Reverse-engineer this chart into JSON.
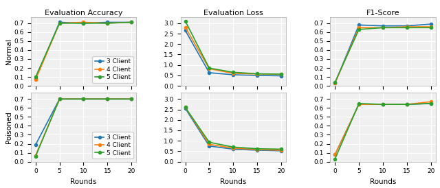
{
  "rounds": [
    0,
    5,
    10,
    15,
    20
  ],
  "normal": {
    "accuracy": {
      "3client": [
        0.08,
        0.71,
        0.7,
        0.71,
        0.71
      ],
      "4client": [
        0.07,
        0.7,
        0.71,
        0.7,
        0.71
      ],
      "5client": [
        0.1,
        0.7,
        0.7,
        0.7,
        0.71
      ]
    },
    "loss": {
      "3client": [
        2.65,
        0.63,
        0.53,
        0.5,
        0.48
      ],
      "4client": [
        2.8,
        0.82,
        0.6,
        0.57,
        0.55
      ],
      "5client": [
        3.1,
        0.85,
        0.65,
        0.58,
        0.56
      ]
    },
    "f1": {
      "3client": [
        0.03,
        0.68,
        0.67,
        0.67,
        0.69
      ],
      "4client": [
        0.03,
        0.65,
        0.65,
        0.66,
        0.66
      ],
      "5client": [
        0.04,
        0.63,
        0.65,
        0.65,
        0.65
      ]
    }
  },
  "poisoned": {
    "accuracy": {
      "3client": [
        0.19,
        0.7,
        0.7,
        0.7,
        0.7
      ],
      "4client": [
        0.07,
        0.7,
        0.7,
        0.7,
        0.7
      ],
      "5client": [
        0.06,
        0.7,
        0.7,
        0.7,
        0.7
      ]
    },
    "loss": {
      "3client": [
        2.55,
        0.75,
        0.6,
        0.55,
        0.52
      ],
      "4client": [
        2.6,
        0.83,
        0.65,
        0.58,
        0.55
      ],
      "5client": [
        2.6,
        0.93,
        0.7,
        0.62,
        0.6
      ]
    },
    "f1": {
      "3client": [
        0.08,
        0.64,
        0.64,
        0.64,
        0.65
      ],
      "4client": [
        0.08,
        0.64,
        0.64,
        0.64,
        0.67
      ],
      "5client": [
        0.03,
        0.65,
        0.64,
        0.64,
        0.65
      ]
    }
  },
  "colors": {
    "3client": "#1f77b4",
    "4client": "#ff7f0e",
    "5client": "#2ca02c"
  },
  "labels": {
    "3client": "3 Client",
    "4client": "4 Client",
    "5client": "5 Client"
  },
  "col_titles": [
    "Evaluation Accuracy",
    "Evaluation Loss",
    "F1-Score"
  ],
  "row_labels": [
    "Normal",
    "Poisoned"
  ],
  "xlabel": "Rounds",
  "ylim_acc": [
    0.0,
    0.77
  ],
  "ylim_loss": [
    0.0,
    3.3
  ],
  "ylim_f1": [
    0.0,
    0.77
  ],
  "yticks_acc": [
    0.0,
    0.1,
    0.2,
    0.3,
    0.4,
    0.5,
    0.6,
    0.7
  ],
  "yticks_loss": [
    0.0,
    0.5,
    1.0,
    1.5,
    2.0,
    2.5,
    3.0
  ],
  "yticks_f1": [
    0.0,
    0.1,
    0.2,
    0.3,
    0.4,
    0.5,
    0.6,
    0.7
  ],
  "xticks": [
    0,
    5,
    10,
    15,
    20
  ],
  "marker": "o",
  "marker_size": 3,
  "line_width": 1.2,
  "bg_color": "#f0f0f0",
  "grid_color": "#ffffff",
  "tick_fontsize": 6.5,
  "label_fontsize": 7.5,
  "title_fontsize": 8,
  "legend_fontsize": 6.5
}
